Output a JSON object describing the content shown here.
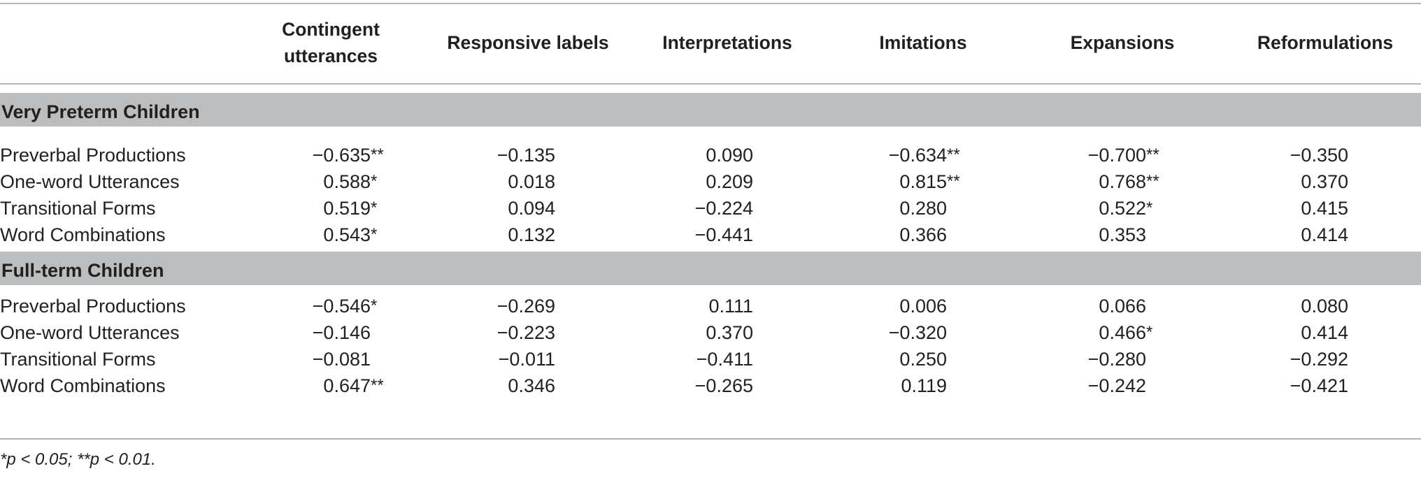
{
  "table": {
    "columns": [
      "Contingent utterances",
      "Responsive labels",
      "Interpretations",
      "Imitations",
      "Expansions",
      "Reformulations"
    ],
    "groups": [
      {
        "label": "Very Preterm Children",
        "rows": [
          {
            "label": "Preverbal Productions",
            "values": [
              "−0.635**",
              "−0.135",
              "0.090",
              "−0.634**",
              "−0.700**",
              "−0.350"
            ]
          },
          {
            "label": "One-word Utterances",
            "values": [
              "0.588*",
              "0.018",
              "0.209",
              "0.815**",
              "0.768**",
              "0.370"
            ]
          },
          {
            "label": "Transitional Forms",
            "values": [
              "0.519*",
              "0.094",
              "−0.224",
              "0.280",
              "0.522*",
              "0.415"
            ]
          },
          {
            "label": "Word Combinations",
            "values": [
              "0.543*",
              "0.132",
              "−0.441",
              "0.366",
              "0.353",
              "0.414"
            ]
          }
        ]
      },
      {
        "label": "Full-term Children",
        "rows": [
          {
            "label": "Preverbal Productions",
            "values": [
              "−0.546*",
              "−0.269",
              "0.111",
              "0.006",
              "0.066",
              "0.080"
            ]
          },
          {
            "label": "One-word Utterances",
            "values": [
              "−0.146",
              "−0.223",
              "0.370",
              "−0.320",
              "0.466*",
              "0.414"
            ]
          },
          {
            "label": "Transitional Forms",
            "values": [
              "−0.081",
              "−0.011",
              "−0.411",
              "0.250",
              "−0.280",
              "−0.292"
            ]
          },
          {
            "label": "Word Combinations",
            "values": [
              "0.647**",
              "0.346",
              "−0.265",
              "0.119",
              "−0.242",
              "−0.421"
            ]
          }
        ]
      }
    ],
    "footnote": "*p < 0.05; **p < 0.01."
  }
}
